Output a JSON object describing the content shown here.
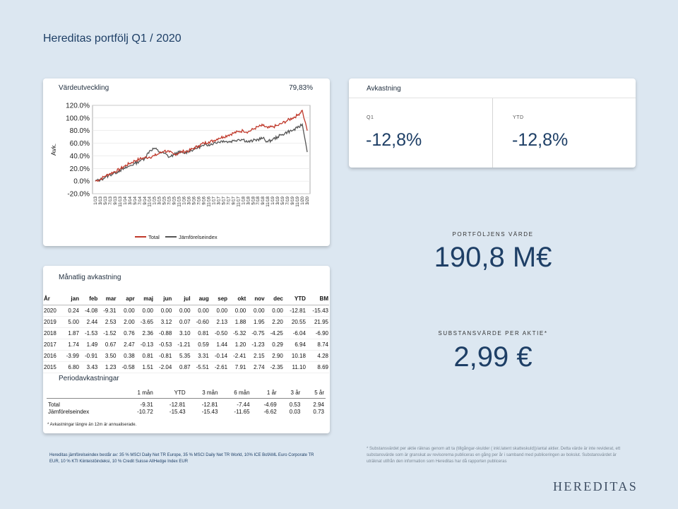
{
  "title": "Hereditas portfölj Q1 / 2020",
  "chart_card": {
    "title": "Värdeutveckling",
    "value": "79,83%"
  },
  "chart_data": {
    "type": "line",
    "ylabel": "Avk.",
    "ylim": [
      -20,
      120
    ],
    "yticks": [
      "120.0%",
      "100.0%",
      "80.0%",
      "60.0%",
      "40.0%",
      "20.0%",
      "0.0%",
      "-20.0%"
    ],
    "ytick_values": [
      120,
      100,
      80,
      60,
      40,
      20,
      0,
      -20
    ],
    "xticks": [
      "1/13",
      "3/13",
      "5/13",
      "7/13",
      "9/13",
      "11/13",
      "1/14",
      "3/14",
      "5/14",
      "7/14",
      "9/14",
      "11/14",
      "1/15",
      "3/15",
      "5/15",
      "7/15",
      "9/15",
      "11/15",
      "1/16",
      "3/16",
      "5/16",
      "7/16",
      "9/16",
      "11/16",
      "1/17",
      "3/17",
      "5/17",
      "7/17",
      "9/17",
      "11/17",
      "1/18",
      "3/18",
      "5/18",
      "7/18",
      "9/18",
      "11/18",
      "1/19",
      "3/19",
      "5/19",
      "7/19",
      "9/19",
      "11/19",
      "1/20",
      "3/20"
    ],
    "grid": true,
    "legend_position": "bottom",
    "series": [
      {
        "name": "Total",
        "color": "#c0392b",
        "values": [
          0,
          3,
          8,
          12,
          15,
          19,
          24,
          28,
          32,
          35,
          37,
          38,
          40,
          44,
          48,
          46,
          42,
          45,
          47,
          48,
          52,
          56,
          60,
          62,
          64,
          68,
          70,
          73,
          76,
          78,
          80,
          78,
          82,
          86,
          88,
          84,
          86,
          88,
          92,
          96,
          100,
          104,
          112,
          80
        ]
      },
      {
        "name": "Jämförelseindex",
        "color": "#555555",
        "values": [
          0,
          2,
          6,
          10,
          13,
          17,
          20,
          24,
          28,
          32,
          36,
          48,
          52,
          46,
          44,
          38,
          42,
          46,
          44,
          48,
          50,
          54,
          56,
          58,
          60,
          62,
          64,
          62,
          64,
          66,
          66,
          62,
          64,
          66,
          68,
          62,
          66,
          70,
          74,
          78,
          80,
          84,
          90,
          46
        ]
      }
    ]
  },
  "returns_card": {
    "title": "Avkastning",
    "q1_label": "Q1",
    "q1_value": "-12,8%",
    "ytd_label": "YTD",
    "ytd_value": "-12,8%"
  },
  "portfolio": {
    "label": "PORTFÖLJENS VÄRDE",
    "value": "190,8 M€"
  },
  "nav": {
    "label": "SUBSTANSVÄRDE PER AKTIE*",
    "value": "2,99 €"
  },
  "monthly": {
    "title": "Månatlig avkastning",
    "headers": [
      "År",
      "jan",
      "feb",
      "mar",
      "apr",
      "maj",
      "jun",
      "jul",
      "aug",
      "sep",
      "okt",
      "nov",
      "dec",
      "YTD",
      "BM"
    ],
    "rows": [
      [
        "2020",
        "0.24",
        "-4.08",
        "-9.31",
        "0.00",
        "0.00",
        "0.00",
        "0.00",
        "0.00",
        "0.00",
        "0.00",
        "0.00",
        "0.00",
        "-12.81",
        "-15.43"
      ],
      [
        "2019",
        "5.00",
        "2.44",
        "2.53",
        "2.00",
        "-3.65",
        "3.12",
        "0.07",
        "-0.60",
        "2.13",
        "1.88",
        "1.95",
        "2.20",
        "20.55",
        "21.95"
      ],
      [
        "2018",
        "1.87",
        "-1.53",
        "-1.52",
        "0.76",
        "2.36",
        "-0.88",
        "3.10",
        "0.81",
        "-0.50",
        "-5.32",
        "-0.75",
        "-4.25",
        "-6.04",
        "-6.90"
      ],
      [
        "2017",
        "1.74",
        "1.49",
        "0.67",
        "2.47",
        "-0.13",
        "-0.53",
        "-1.21",
        "0.59",
        "1.44",
        "1.20",
        "-1.23",
        "0.29",
        "6.94",
        "8.74"
      ],
      [
        "2016",
        "-3.99",
        "-0.91",
        "3.50",
        "0.38",
        "0.81",
        "-0.81",
        "5.35",
        "3.31",
        "-0.14",
        "-2.41",
        "2.15",
        "2.90",
        "10.18",
        "4.28"
      ],
      [
        "2015",
        "6.80",
        "3.43",
        "1.23",
        "-0.58",
        "1.51",
        "-2.04",
        "0.87",
        "-5.51",
        "-2.61",
        "7.91",
        "2.74",
        "-2.35",
        "11.10",
        "8.69"
      ]
    ]
  },
  "period": {
    "title": "Periodavkastningar",
    "headers": [
      "",
      "1 mån",
      "YTD",
      "3 mån",
      "6 mån",
      "1 år",
      "3 år",
      "5 år"
    ],
    "rows": [
      [
        "Total",
        "-9.31",
        "-12.81",
        "-12.81",
        "-7.44",
        "-4.69",
        "0.53",
        "2.94"
      ],
      [
        "Jämförelseindex",
        "-10.72",
        "-15.43",
        "-15.43",
        "-11.65",
        "-6.62",
        "0.03",
        "0.73"
      ]
    ],
    "note": "* Avkastningar längre än 12m är annualiserade."
  },
  "footnote_left": "Hereditas jämförelseindex består av: 35 % MSCI Daily Net TR Europe, 35 % MSCI Daily Net TR World, 10% ICE BofAML Euro Corporate TR EUR, 10 % KTI Kiinteistöindeksi, 10 % Credit Suisse AllHedge Index EUR",
  "footnote_right": "* Substansvärdet per aktie räknas genom att ta (tillgångar-skulder ( inkl.latent skatteskuld))/antal aktier. Detta värde är inte reviderat, ett substansvärde som är granskat av revisorerna publiceras en gång per år i samband med publiceringen av bokslut. Substansvärdet är uträknat utifrån den information som Hereditas har då rapporten publiceras",
  "brand": "HEREDITAS"
}
